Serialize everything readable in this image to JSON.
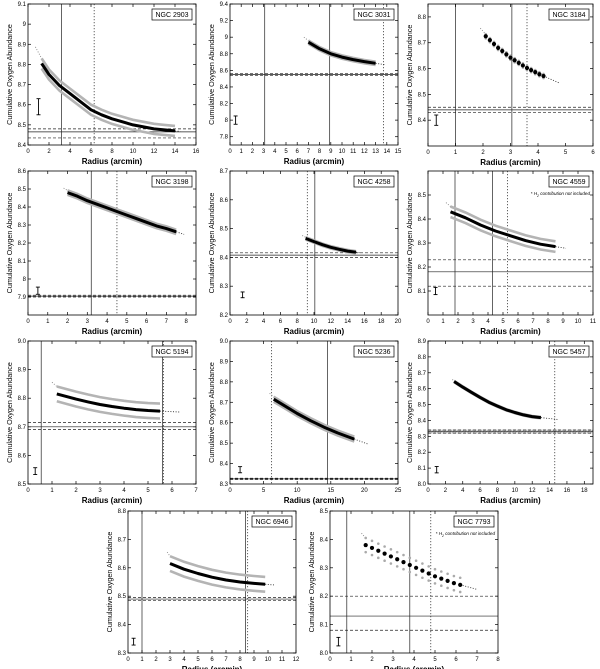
{
  "figure": {
    "x_label": "Radius (arcmin)",
    "y_label": "Cumulative Oxygen Abundance",
    "note": "* H",
    "note_sub": "2",
    "note_rest": " contribution not included"
  },
  "chart_data": [
    {
      "type": "line",
      "name": "NGC 2903",
      "xlim": [
        0,
        16
      ],
      "ylim": [
        8.4,
        9.1
      ],
      "xticks": [
        0,
        2,
        4,
        6,
        8,
        10,
        12,
        14,
        16
      ],
      "yticks": [
        8.4,
        8.5,
        8.6,
        8.7,
        8.8,
        8.9,
        9.0,
        9.1
      ],
      "ytick_labels": [
        "8.4",
        "8.5",
        "8.6",
        "8.7",
        "8.8",
        "8.9",
        "9",
        "9.1"
      ],
      "x": [
        1.3,
        2,
        3,
        4,
        5,
        6,
        7,
        8,
        9,
        10,
        11,
        12,
        13,
        14
      ],
      "y": [
        8.805,
        8.75,
        8.695,
        8.655,
        8.615,
        8.575,
        8.55,
        8.53,
        8.515,
        8.5,
        8.49,
        8.48,
        8.475,
        8.47
      ],
      "band": 0.025,
      "band_style": "gray",
      "dotted_ext": [
        0.7,
        14.5
      ],
      "vlines": [
        {
          "x": 3.2,
          "style": "solid"
        },
        {
          "x": 6.3,
          "style": "dotted"
        }
      ],
      "hlines": [
        {
          "y": 8.465,
          "style": "solid"
        },
        {
          "y": 8.48,
          "style": "dashed"
        },
        {
          "y": 8.435,
          "style": "dashed"
        }
      ],
      "errorbar": {
        "x": 1.0,
        "y": 8.59,
        "half": 0.04
      },
      "note": false
    },
    {
      "type": "line",
      "name": "NGC 3031",
      "xlim": [
        0,
        15
      ],
      "ylim": [
        7.7,
        9.4
      ],
      "xticks": [
        0,
        1,
        2,
        3,
        4,
        5,
        6,
        7,
        8,
        9,
        10,
        11,
        12,
        13,
        14,
        15
      ],
      "yticks": [
        7.8,
        8.0,
        8.2,
        8.4,
        8.6,
        8.8,
        9.0,
        9.2,
        9.4
      ],
      "ytick_labels": [
        "7.8",
        "8",
        "8.2",
        "8.4",
        "8.6",
        "8.8",
        "9",
        "9.2",
        "9.4"
      ],
      "x": [
        7,
        8,
        9,
        10,
        11,
        12,
        13
      ],
      "y": [
        8.94,
        8.86,
        8.8,
        8.76,
        8.73,
        8.705,
        8.685
      ],
      "band": 0.02,
      "band_style": "gray",
      "dotted_ext": [
        6.6,
        13.8
      ],
      "vlines": [
        {
          "x": 3.1,
          "style": "solid"
        },
        {
          "x": 8.9,
          "style": "solid"
        },
        {
          "x": 13.7,
          "style": "dotted"
        }
      ],
      "hlines": [
        {
          "y": 8.55,
          "style": "solid"
        },
        {
          "y": 8.56,
          "style": "dashed"
        },
        {
          "y": 8.54,
          "style": "dashed"
        }
      ],
      "errorbar": {
        "x": 0.5,
        "y": 8.0,
        "half": 0.05
      },
      "note": false
    },
    {
      "type": "scatter",
      "name": "NGC 3184",
      "xlim": [
        0,
        6
      ],
      "ylim": [
        8.3,
        8.85
      ],
      "xticks": [
        0,
        1,
        2,
        3,
        4,
        5,
        6
      ],
      "yticks": [
        8.4,
        8.5,
        8.6,
        8.7,
        8.8
      ],
      "ytick_labels": [
        "8.4",
        "8.5",
        "8.6",
        "8.7",
        "8.8"
      ],
      "x": [
        2.1,
        2.25,
        2.4,
        2.55,
        2.7,
        2.85,
        3.0,
        3.15,
        3.3,
        3.45,
        3.6,
        3.75,
        3.9,
        4.05,
        4.2
      ],
      "y": [
        8.725,
        8.71,
        8.695,
        8.68,
        8.668,
        8.655,
        8.642,
        8.632,
        8.622,
        8.612,
        8.602,
        8.594,
        8.586,
        8.578,
        8.571
      ],
      "band": 0.008,
      "band_style": "dots",
      "dotted_ext": [
        1.9,
        4.8
      ],
      "vlines": [
        {
          "x": 1.0,
          "style": "solid"
        },
        {
          "x": 3.05,
          "style": "solid"
        },
        {
          "x": 3.6,
          "style": "dotted"
        }
      ],
      "hlines": [
        {
          "y": 8.44,
          "style": "solid"
        },
        {
          "y": 8.45,
          "style": "dashed"
        },
        {
          "y": 8.43,
          "style": "dashed"
        }
      ],
      "errorbar": {
        "x": 0.3,
        "y": 8.4,
        "half": 0.02
      },
      "note": false
    },
    {
      "type": "line",
      "name": "NGC 3198",
      "xlim": [
        0,
        8.5
      ],
      "ylim": [
        7.8,
        8.6
      ],
      "xticks": [
        0,
        1,
        2,
        3,
        4,
        5,
        6,
        7,
        8
      ],
      "yticks": [
        7.9,
        8.0,
        8.1,
        8.2,
        8.3,
        8.4,
        8.5,
        8.6
      ],
      "ytick_labels": [
        "7.9",
        "8",
        "8.1",
        "8.2",
        "8.3",
        "8.4",
        "8.5",
        "8.6"
      ],
      "x": [
        2.0,
        2.5,
        3.0,
        3.5,
        4.0,
        4.5,
        5.0,
        5.5,
        6.0,
        6.5,
        7.0,
        7.5
      ],
      "y": [
        8.48,
        8.46,
        8.435,
        8.415,
        8.395,
        8.375,
        8.355,
        8.335,
        8.315,
        8.295,
        8.28,
        8.262
      ],
      "band": 0.012,
      "band_style": "gray",
      "dotted_ext": [
        1.8,
        7.9
      ],
      "vlines": [
        {
          "x": 3.2,
          "style": "solid"
        },
        {
          "x": 4.5,
          "style": "dotted"
        }
      ],
      "hlines": [
        {
          "y": 7.905,
          "style": "solid"
        },
        {
          "y": 7.91,
          "style": "dashed"
        },
        {
          "y": 7.9,
          "style": "dashed"
        }
      ],
      "errorbar": {
        "x": 0.5,
        "y": 7.935,
        "half": 0.02
      },
      "note": false
    },
    {
      "type": "line",
      "name": "NGC 4258",
      "xlim": [
        0,
        20
      ],
      "ylim": [
        8.2,
        8.7
      ],
      "xticks": [
        0,
        2,
        4,
        6,
        8,
        10,
        12,
        14,
        16,
        18,
        20
      ],
      "yticks": [
        8.2,
        8.3,
        8.4,
        8.5,
        8.6,
        8.7
      ],
      "ytick_labels": [
        "8.2",
        "8.3",
        "8.4",
        "8.5",
        "8.6",
        "8.7"
      ],
      "x": [
        9.0,
        10,
        11,
        12,
        13,
        14,
        15
      ],
      "y": [
        8.466,
        8.455,
        8.444,
        8.435,
        8.428,
        8.422,
        8.418
      ],
      "band": 0.004,
      "band_style": "gray",
      "dotted_ext": [
        8.6,
        15.6
      ],
      "vlines": [
        {
          "x": 9.2,
          "style": "dotted"
        },
        {
          "x": 10.1,
          "style": "solid"
        }
      ],
      "hlines": [
        {
          "y": 8.408,
          "style": "solid"
        },
        {
          "y": 8.416,
          "style": "dashed"
        },
        {
          "y": 8.4,
          "style": "dashed"
        }
      ],
      "errorbar": {
        "x": 1.5,
        "y": 8.27,
        "half": 0.01
      },
      "note": false
    },
    {
      "type": "line",
      "name": "NGC 4559",
      "xlim": [
        0,
        11
      ],
      "ylim": [
        8.0,
        8.6
      ],
      "xticks": [
        0,
        1,
        2,
        3,
        4,
        5,
        6,
        7,
        8,
        9,
        10,
        11
      ],
      "yticks": [
        8.1,
        8.2,
        8.3,
        8.4,
        8.5
      ],
      "ytick_labels": [
        "8.1",
        "8.2",
        "8.3",
        "8.4",
        "8.5"
      ],
      "x": [
        1.5,
        2.5,
        3.5,
        4.5,
        5.5,
        6.5,
        7.5,
        8.5
      ],
      "y": [
        8.43,
        8.405,
        8.375,
        8.35,
        8.33,
        8.31,
        8.295,
        8.285
      ],
      "band": 0.022,
      "band_style": "gray",
      "dotted_ext": [
        1.2,
        9.2
      ],
      "vlines": [
        {
          "x": 1.8,
          "style": "solid"
        },
        {
          "x": 4.3,
          "style": "solid"
        },
        {
          "x": 5.3,
          "style": "dotted"
        }
      ],
      "hlines": [
        {
          "y": 8.18,
          "style": "solid"
        },
        {
          "y": 8.23,
          "style": "dashed"
        },
        {
          "y": 8.12,
          "style": "dashed"
        }
      ],
      "errorbar": {
        "x": 0.5,
        "y": 8.1,
        "half": 0.015
      },
      "note": true
    },
    {
      "type": "line",
      "name": "NGC 5194",
      "xlim": [
        0,
        7
      ],
      "ylim": [
        8.5,
        9.0
      ],
      "xticks": [
        0,
        1,
        2,
        3,
        4,
        5,
        6,
        7
      ],
      "yticks": [
        8.5,
        8.6,
        8.7,
        8.8,
        8.9,
        9.0
      ],
      "ytick_labels": [
        "8.5",
        "8.6",
        "8.7",
        "8.8",
        "8.9",
        "9.0"
      ],
      "x": [
        1.2,
        2,
        2.5,
        3,
        3.5,
        4,
        4.5,
        5,
        5.5
      ],
      "y": [
        8.815,
        8.797,
        8.787,
        8.778,
        8.771,
        8.765,
        8.76,
        8.757,
        8.755
      ],
      "band": 0.026,
      "band_style": "gray",
      "dotted_ext": [
        1.0,
        6.3
      ],
      "vlines": [
        {
          "x": 0.55,
          "style": "solid"
        },
        {
          "x": 5.6,
          "style": "solid"
        },
        {
          "x": 5.65,
          "style": "dotted"
        }
      ],
      "hlines": [
        {
          "y": 8.7,
          "style": "solid"
        },
        {
          "y": 8.715,
          "style": "dashed"
        },
        {
          "y": 8.69,
          "style": "dashed"
        }
      ],
      "errorbar": {
        "x": 0.3,
        "y": 8.545,
        "half": 0.012
      },
      "note": false
    },
    {
      "type": "line",
      "name": "NGC 5236",
      "xlim": [
        0,
        25
      ],
      "ylim": [
        8.3,
        9.0
      ],
      "xticks": [
        0,
        5,
        10,
        15,
        20,
        25
      ],
      "yticks": [
        8.3,
        8.4,
        8.5,
        8.6,
        8.7,
        8.8,
        8.9,
        9.0
      ],
      "ytick_labels": [
        "8.3",
        "8.4",
        "8.5",
        "8.6",
        "8.7",
        "8.8",
        "8.9",
        "9.0"
      ],
      "x": [
        6.5,
        8,
        10,
        12,
        14,
        16,
        18.5
      ],
      "y": [
        8.715,
        8.685,
        8.645,
        8.61,
        8.578,
        8.55,
        8.52
      ],
      "band": 0.012,
      "band_style": "gray",
      "dotted_ext": [
        5.9,
        20.5
      ],
      "vlines": [
        {
          "x": 6.2,
          "style": "dotted"
        },
        {
          "x": 14.5,
          "style": "solid"
        }
      ],
      "hlines": [
        {
          "y": 8.325,
          "style": "solid"
        },
        {
          "y": 8.328,
          "style": "dashed"
        },
        {
          "y": 8.322,
          "style": "dashed"
        }
      ],
      "errorbar": {
        "x": 1.5,
        "y": 8.37,
        "half": 0.015
      },
      "note": false
    },
    {
      "type": "line",
      "name": "NGC 5457",
      "xlim": [
        0,
        19
      ],
      "ylim": [
        8.0,
        8.9
      ],
      "xticks": [
        0,
        2,
        4,
        6,
        8,
        10,
        12,
        14,
        16,
        18
      ],
      "yticks": [
        8.0,
        8.1,
        8.2,
        8.3,
        8.4,
        8.5,
        8.6,
        8.7,
        8.8,
        8.9
      ],
      "ytick_labels": [
        "8.0",
        "8.1",
        "8.2",
        "8.3",
        "8.4",
        "8.5",
        "8.6",
        "8.7",
        "8.8",
        "8.9"
      ],
      "x": [
        3,
        4,
        5,
        6,
        7,
        8,
        9,
        10,
        11,
        12,
        13
      ],
      "y": [
        8.645,
        8.61,
        8.577,
        8.545,
        8.515,
        8.49,
        8.467,
        8.45,
        8.435,
        8.424,
        8.418
      ],
      "band": 0.004,
      "band_style": "gray",
      "dotted_ext": [
        2.8,
        15.0
      ],
      "vlines": [
        {
          "x": 14.6,
          "style": "dotted"
        }
      ],
      "hlines": [
        {
          "y": 8.33,
          "style": "solid"
        },
        {
          "y": 8.34,
          "style": "dashed"
        },
        {
          "y": 8.32,
          "style": "dashed"
        }
      ],
      "hatch": [
        8.318,
        8.342
      ],
      "errorbar": {
        "x": 1.0,
        "y": 8.09,
        "half": 0.02
      },
      "note": false
    },
    {
      "type": "line",
      "name": "NGC 6946",
      "xlim": [
        0,
        12
      ],
      "ylim": [
        8.3,
        8.8
      ],
      "xticks": [
        0,
        1,
        2,
        3,
        4,
        5,
        6,
        7,
        8,
        9,
        10,
        11,
        12
      ],
      "yticks": [
        8.3,
        8.4,
        8.5,
        8.6,
        8.7,
        8.8
      ],
      "ytick_labels": [
        "8.3",
        "8.4",
        "8.5",
        "8.6",
        "8.7",
        "8.8"
      ],
      "x": [
        3,
        4,
        5,
        6,
        7,
        8,
        9,
        9.8
      ],
      "y": [
        8.615,
        8.595,
        8.58,
        8.567,
        8.557,
        8.55,
        8.545,
        8.542
      ],
      "band": 0.026,
      "band_style": "gray",
      "dotted_ext": [
        2.8,
        10.5
      ],
      "vlines": [
        {
          "x": 1.0,
          "style": "solid"
        },
        {
          "x": 8.4,
          "style": "solid"
        },
        {
          "x": 8.55,
          "style": "dotted"
        }
      ],
      "hlines": [
        {
          "y": 8.49,
          "style": "solid"
        },
        {
          "y": 8.495,
          "style": "dashed"
        },
        {
          "y": 8.485,
          "style": "dashed"
        }
      ],
      "errorbar": {
        "x": 0.4,
        "y": 8.34,
        "half": 0.012
      },
      "note": false
    },
    {
      "type": "scatter",
      "name": "NGC 7793",
      "xlim": [
        0,
        8
      ],
      "ylim": [
        8.0,
        8.5
      ],
      "xticks": [
        0,
        1,
        2,
        3,
        4,
        5,
        6,
        7,
        8
      ],
      "yticks": [
        8.0,
        8.1,
        8.2,
        8.3,
        8.4,
        8.5
      ],
      "ytick_labels": [
        "8.0",
        "8.1",
        "8.2",
        "8.3",
        "8.4",
        "8.5"
      ],
      "x": [
        1.7,
        2.0,
        2.3,
        2.6,
        2.9,
        3.2,
        3.5,
        3.8,
        4.1,
        4.4,
        4.7,
        5.0,
        5.3,
        5.6,
        5.9,
        6.2
      ],
      "y": [
        8.38,
        8.37,
        8.36,
        8.35,
        8.34,
        8.33,
        8.32,
        8.31,
        8.3,
        8.29,
        8.28,
        8.27,
        8.262,
        8.254,
        8.246,
        8.24
      ],
      "band": 0.025,
      "band_style": "dots",
      "dotted_ext": [
        1.5,
        7.0
      ],
      "vlines": [
        {
          "x": 0.8,
          "style": "solid"
        },
        {
          "x": 3.8,
          "style": "solid"
        },
        {
          "x": 4.8,
          "style": "dotted"
        }
      ],
      "hlines": [
        {
          "y": 8.13,
          "style": "solid"
        },
        {
          "y": 8.2,
          "style": "dashed"
        },
        {
          "y": 8.08,
          "style": "dashed"
        }
      ],
      "errorbar": {
        "x": 0.4,
        "y": 8.04,
        "half": 0.015
      },
      "note": true
    }
  ]
}
